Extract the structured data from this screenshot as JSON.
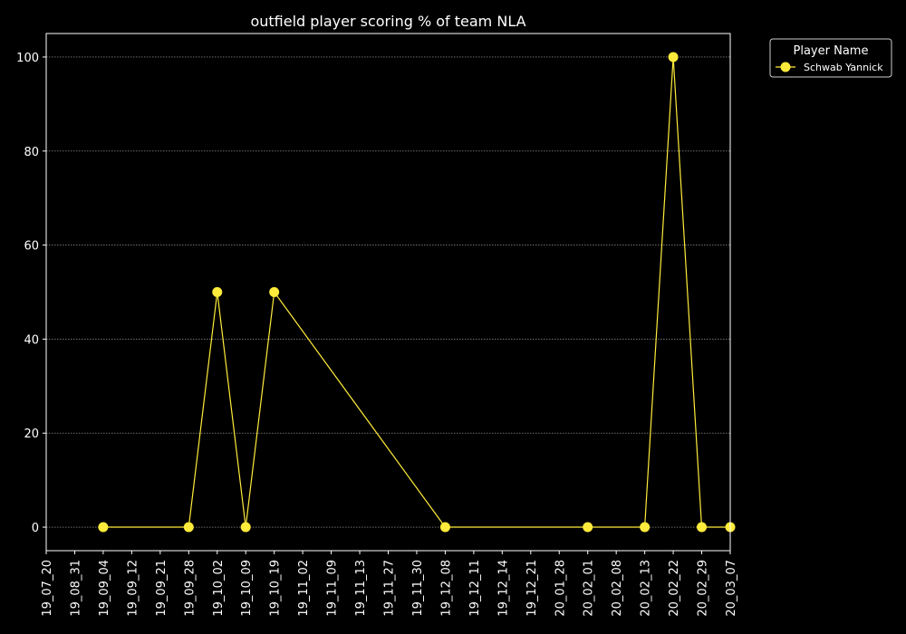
{
  "chart_data": {
    "type": "line",
    "title": "outfield player scoring % of team NLA",
    "xlabel": "",
    "ylabel": "",
    "x": [
      "19_07_20",
      "19_08_31",
      "19_09_04",
      "19_09_12",
      "19_09_21",
      "19_09_28",
      "19_10_02",
      "19_10_09",
      "19_10_19",
      "19_11_02",
      "19_11_09",
      "19_11_13",
      "19_11_27",
      "19_11_30",
      "19_12_08",
      "19_12_11",
      "19_12_14",
      "19_12_21",
      "20_01_28",
      "20_02_01",
      "20_02_08",
      "20_02_13",
      "20_02_22",
      "20_02_29",
      "20_03_07"
    ],
    "ylim": [
      -5,
      105
    ],
    "yticks": [
      0,
      20,
      40,
      60,
      80,
      100
    ],
    "grid": true,
    "legend": {
      "title": "Player Name",
      "placement": "outside-top-right"
    },
    "series": [
      {
        "name": "Schwab Yannick",
        "color": "#ffeb3b",
        "values": [
          null,
          null,
          0,
          null,
          null,
          0,
          50,
          0,
          50,
          null,
          null,
          null,
          null,
          null,
          0,
          null,
          null,
          null,
          null,
          0,
          null,
          0,
          100,
          0,
          0
        ]
      }
    ]
  }
}
